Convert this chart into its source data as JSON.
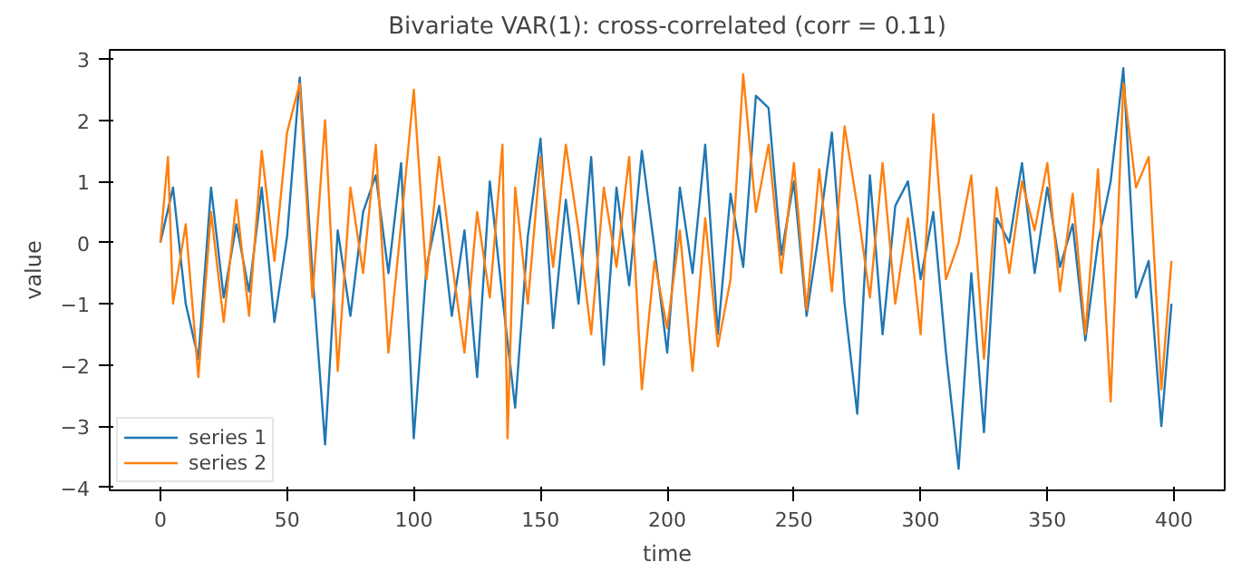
{
  "chart_data": {
    "type": "line",
    "title": "Bivariate VAR(1): cross-correlated (corr = 0.11)",
    "xlabel": "time",
    "ylabel": "value",
    "xlim": [
      -20,
      420
    ],
    "ylim": [
      -4.05,
      3.15
    ],
    "xticks": [
      0,
      50,
      100,
      150,
      200,
      250,
      300,
      350,
      400
    ],
    "yticks": [
      -4,
      -3,
      -2,
      -1,
      0,
      1,
      2,
      3
    ],
    "grid": false,
    "legend": "bottom left",
    "series": [
      {
        "name": "series 1",
        "color": "#1f77b4",
        "x": [
          0,
          5,
          10,
          15,
          20,
          25,
          30,
          35,
          40,
          45,
          50,
          55,
          60,
          65,
          70,
          75,
          80,
          85,
          90,
          95,
          100,
          105,
          110,
          115,
          120,
          125,
          130,
          135,
          140,
          145,
          150,
          155,
          160,
          165,
          170,
          175,
          180,
          185,
          190,
          195,
          200,
          205,
          210,
          215,
          220,
          225,
          230,
          235,
          240,
          245,
          250,
          255,
          260,
          265,
          270,
          275,
          280,
          285,
          290,
          295,
          300,
          305,
          310,
          315,
          320,
          325,
          330,
          335,
          340,
          345,
          350,
          355,
          360,
          365,
          370,
          375,
          380,
          385,
          390,
          395,
          399
        ],
        "values": [
          0,
          0.9,
          -1.0,
          -1.9,
          0.9,
          -0.9,
          0.3,
          -0.8,
          0.9,
          -1.3,
          0.1,
          2.7,
          -0.5,
          -3.3,
          0.2,
          -1.2,
          0.5,
          1.1,
          -0.5,
          1.3,
          -3.2,
          -0.4,
          0.6,
          -1.2,
          0.2,
          -2.2,
          1.0,
          -0.9,
          -2.7,
          0.1,
          1.7,
          -1.4,
          0.7,
          -1.0,
          1.4,
          -2.0,
          0.9,
          -0.7,
          1.5,
          -0.1,
          -1.8,
          0.9,
          -0.5,
          1.6,
          -1.5,
          0.8,
          -0.4,
          2.4,
          2.2,
          -0.2,
          1.0,
          -1.2,
          0.2,
          1.8,
          -1.0,
          -2.8,
          1.1,
          -1.5,
          0.6,
          1.0,
          -0.6,
          0.5,
          -1.8,
          -3.7,
          -0.5,
          -3.1,
          0.4,
          0.0,
          1.3,
          -0.5,
          0.9,
          -0.4,
          0.3,
          -1.6,
          0.0,
          1.0,
          2.85,
          -0.9,
          -0.3,
          -3.0,
          -1.0
        ]
      },
      {
        "name": "series 2",
        "color": "#ff7f0e",
        "x": [
          0,
          3,
          5,
          10,
          15,
          20,
          25,
          30,
          35,
          40,
          45,
          50,
          55,
          60,
          65,
          70,
          75,
          80,
          85,
          90,
          95,
          100,
          105,
          110,
          115,
          120,
          125,
          130,
          135,
          137,
          140,
          145,
          150,
          155,
          160,
          165,
          170,
          175,
          180,
          185,
          190,
          195,
          200,
          205,
          210,
          215,
          220,
          225,
          230,
          235,
          240,
          245,
          250,
          255,
          260,
          265,
          270,
          275,
          280,
          285,
          290,
          295,
          300,
          305,
          310,
          315,
          320,
          325,
          330,
          335,
          340,
          345,
          350,
          355,
          360,
          365,
          370,
          375,
          380,
          385,
          390,
          395,
          399
        ],
        "values": [
          0,
          1.4,
          -1.0,
          0.3,
          -2.2,
          0.5,
          -1.3,
          0.7,
          -1.2,
          1.5,
          -0.3,
          1.8,
          2.6,
          -0.9,
          2.0,
          -2.1,
          0.9,
          -0.5,
          1.6,
          -1.8,
          0.3,
          2.5,
          -0.6,
          1.4,
          -0.3,
          -1.8,
          0.5,
          -0.9,
          1.6,
          -3.2,
          0.9,
          -1.0,
          1.4,
          -0.4,
          1.6,
          0.2,
          -1.5,
          0.9,
          -0.4,
          1.4,
          -2.4,
          -0.3,
          -1.4,
          0.2,
          -2.1,
          0.4,
          -1.7,
          -0.6,
          2.75,
          0.5,
          1.6,
          -0.5,
          1.3,
          -1.1,
          1.2,
          -0.8,
          1.9,
          0.6,
          -0.9,
          1.3,
          -1.0,
          0.4,
          -1.5,
          2.1,
          -0.6,
          0.0,
          1.1,
          -1.9,
          0.9,
          -0.5,
          1.0,
          0.2,
          1.3,
          -0.8,
          0.8,
          -1.5,
          1.2,
          -2.6,
          2.6,
          0.9,
          1.4,
          -2.4,
          -0.3
        ]
      }
    ]
  }
}
